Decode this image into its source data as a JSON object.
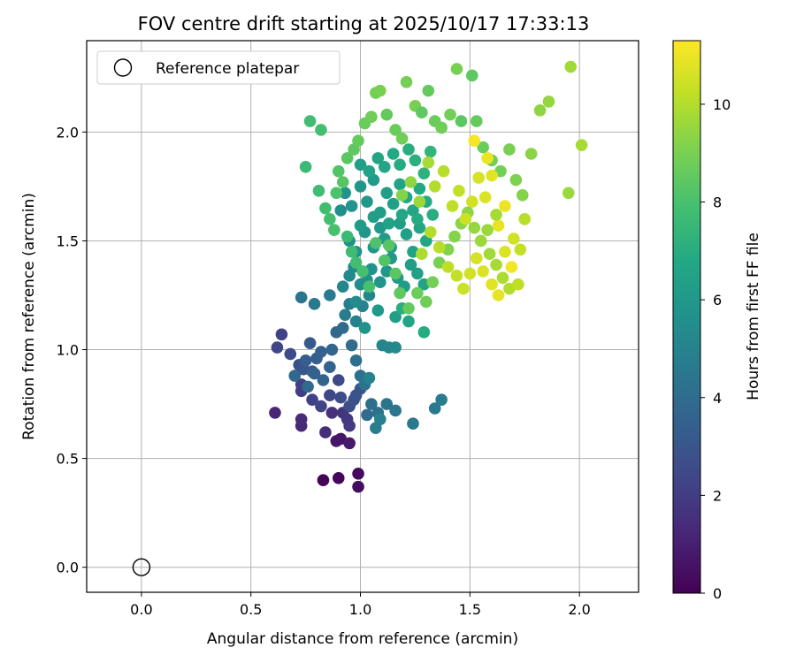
{
  "chart_data": {
    "type": "scatter",
    "title": "FOV centre drift starting at 2025/10/17 17:33:13",
    "xlabel": "Angular distance from reference (arcmin)",
    "ylabel": "Rotation from reference (arcmin)",
    "xlim": [
      -0.25,
      2.27
    ],
    "ylim": [
      -0.115,
      2.42
    ],
    "xticks": [
      0.0,
      0.5,
      1.0,
      1.5,
      2.0
    ],
    "xtick_labels": [
      "0.0",
      "0.5",
      "1.0",
      "1.5",
      "2.0"
    ],
    "yticks": [
      0.0,
      0.5,
      1.0,
      1.5,
      2.0
    ],
    "ytick_labels": [
      "0.0",
      "0.5",
      "1.0",
      "1.5",
      "2.0"
    ],
    "grid": true,
    "legend": {
      "position": "top-left",
      "entries": [
        {
          "marker": "open-circle",
          "label": "Reference platepar"
        }
      ]
    },
    "reference_point": {
      "x": 0.0,
      "y": 0.0
    },
    "colorbar": {
      "label": "Hours from first FF file",
      "range": [
        0,
        11.3
      ],
      "ticks": [
        0,
        2,
        4,
        6,
        8,
        10
      ],
      "tick_labels": [
        "0",
        "2",
        "4",
        "6",
        "8",
        "10"
      ],
      "colormap": "viridis"
    },
    "points": [
      [
        0.83,
        0.4,
        0.1
      ],
      [
        0.9,
        0.41,
        0.2
      ],
      [
        0.99,
        0.43,
        0.3
      ],
      [
        0.99,
        0.37,
        0.4
      ],
      [
        0.91,
        0.59,
        0.6
      ],
      [
        0.89,
        0.58,
        0.7
      ],
      [
        0.95,
        0.57,
        0.8
      ],
      [
        0.61,
        0.71,
        1.2
      ],
      [
        0.73,
        0.65,
        1.3
      ],
      [
        0.73,
        0.68,
        1.4
      ],
      [
        0.84,
        0.62,
        1.5
      ],
      [
        0.87,
        0.71,
        1.6
      ],
      [
        0.92,
        0.71,
        1.7
      ],
      [
        0.94,
        0.68,
        1.8
      ],
      [
        0.95,
        0.65,
        1.9
      ],
      [
        0.73,
        0.81,
        2.0
      ],
      [
        0.73,
        0.84,
        2.1
      ],
      [
        0.78,
        0.77,
        2.2
      ],
      [
        0.82,
        0.74,
        2.3
      ],
      [
        0.86,
        0.79,
        2.4
      ],
      [
        0.9,
        0.86,
        2.5
      ],
      [
        0.91,
        0.78,
        2.6
      ],
      [
        0.95,
        0.74,
        2.7
      ],
      [
        0.97,
        0.77,
        2.8
      ],
      [
        0.98,
        0.79,
        2.9
      ],
      [
        1.0,
        0.82,
        3.0
      ],
      [
        0.64,
        1.07,
        2.2
      ],
      [
        0.62,
        1.01,
        2.4
      ],
      [
        0.68,
        0.98,
        2.6
      ],
      [
        0.72,
        0.93,
        2.8
      ],
      [
        0.74,
        0.91,
        3.0
      ],
      [
        0.78,
        0.9,
        3.2
      ],
      [
        0.8,
        0.96,
        3.4
      ],
      [
        0.82,
        0.99,
        3.5
      ],
      [
        0.86,
        0.92,
        3.6
      ],
      [
        0.87,
        1.0,
        3.7
      ],
      [
        0.89,
        1.08,
        3.8
      ],
      [
        0.92,
        1.1,
        3.9
      ],
      [
        0.96,
        1.02,
        4.0
      ],
      [
        0.98,
        0.95,
        4.1
      ],
      [
        1.0,
        0.88,
        4.2
      ],
      [
        1.02,
        0.84,
        4.3
      ],
      [
        0.77,
        1.03,
        3.2
      ],
      [
        0.75,
        0.95,
        3.3
      ],
      [
        0.79,
        0.89,
        3.5
      ],
      [
        0.83,
        0.86,
        3.6
      ],
      [
        0.7,
        0.88,
        3.8
      ],
      [
        0.76,
        0.83,
        3.9
      ],
      [
        1.03,
        0.7,
        4.0
      ],
      [
        1.05,
        0.75,
        4.1
      ],
      [
        1.08,
        0.71,
        4.2
      ],
      [
        1.12,
        0.75,
        4.3
      ],
      [
        1.16,
        0.72,
        4.4
      ],
      [
        1.24,
        0.66,
        4.5
      ],
      [
        1.34,
        0.73,
        4.6
      ],
      [
        1.37,
        0.77,
        4.7
      ],
      [
        1.07,
        0.64,
        4.8
      ],
      [
        1.09,
        0.68,
        4.9
      ],
      [
        1.04,
        0.87,
        5.0
      ],
      [
        1.1,
        1.02,
        5.1
      ],
      [
        1.13,
        1.01,
        5.2
      ],
      [
        1.16,
        1.01,
        5.3
      ],
      [
        0.73,
        1.24,
        4.4
      ],
      [
        0.79,
        1.21,
        4.5
      ],
      [
        0.86,
        1.25,
        4.6
      ],
      [
        0.93,
        1.16,
        4.7
      ],
      [
        0.95,
        1.21,
        4.8
      ],
      [
        0.98,
        1.13,
        4.9
      ],
      [
        1.01,
        1.2,
        5.0
      ],
      [
        1.04,
        1.25,
        5.1
      ],
      [
        0.92,
        1.29,
        5.2
      ],
      [
        0.95,
        1.34,
        5.3
      ],
      [
        0.97,
        1.38,
        5.4
      ],
      [
        1.0,
        1.3,
        5.5
      ],
      [
        1.03,
        1.32,
        5.6
      ],
      [
        1.05,
        1.37,
        5.7
      ],
      [
        1.09,
        1.31,
        5.8
      ],
      [
        1.12,
        1.36,
        5.9
      ],
      [
        1.14,
        1.42,
        6.0
      ],
      [
        1.17,
        1.33,
        6.1
      ],
      [
        1.2,
        1.29,
        6.2
      ],
      [
        1.23,
        1.39,
        6.3
      ],
      [
        1.26,
        1.35,
        6.4
      ],
      [
        1.29,
        1.3,
        6.5
      ],
      [
        0.95,
        1.5,
        5.6
      ],
      [
        0.98,
        1.45,
        5.7
      ],
      [
        1.02,
        1.54,
        5.8
      ],
      [
        1.06,
        1.47,
        5.9
      ],
      [
        1.09,
        1.56,
        6.0
      ],
      [
        1.11,
        1.51,
        6.1
      ],
      [
        1.14,
        1.47,
        6.2
      ],
      [
        1.18,
        1.58,
        6.3
      ],
      [
        1.21,
        1.53,
        6.4
      ],
      [
        1.24,
        1.45,
        6.5
      ],
      [
        1.27,
        1.56,
        6.6
      ],
      [
        1.3,
        1.5,
        6.7
      ],
      [
        0.91,
        1.64,
        5.6
      ],
      [
        0.93,
        1.72,
        5.7
      ],
      [
        0.96,
        1.66,
        5.8
      ],
      [
        1.0,
        1.75,
        5.9
      ],
      [
        1.03,
        1.68,
        6.0
      ],
      [
        1.06,
        1.78,
        6.1
      ],
      [
        1.09,
        1.63,
        6.2
      ],
      [
        1.12,
        1.72,
        6.3
      ],
      [
        1.15,
        1.67,
        6.4
      ],
      [
        1.18,
        1.76,
        6.5
      ],
      [
        1.21,
        1.7,
        6.6
      ],
      [
        1.24,
        1.64,
        6.7
      ],
      [
        1.27,
        1.74,
        6.8
      ],
      [
        1.3,
        1.68,
        6.9
      ],
      [
        1.33,
        1.62,
        7.0
      ],
      [
        1.0,
        1.85,
        6.4
      ],
      [
        1.04,
        1.82,
        6.5
      ],
      [
        1.08,
        1.88,
        6.6
      ],
      [
        1.11,
        1.84,
        6.7
      ],
      [
        1.15,
        1.9,
        6.8
      ],
      [
        1.18,
        1.85,
        6.9
      ],
      [
        1.22,
        1.92,
        7.0
      ],
      [
        1.25,
        1.87,
        7.1
      ],
      [
        1.29,
        1.81,
        7.2
      ],
      [
        1.32,
        1.91,
        7.3
      ],
      [
        1.0,
        1.57,
        6.1
      ],
      [
        1.06,
        1.61,
        6.3
      ],
      [
        1.13,
        1.58,
        6.5
      ],
      [
        1.19,
        1.62,
        6.7
      ],
      [
        1.26,
        1.6,
        6.9
      ],
      [
        0.98,
        1.22,
        5.4
      ],
      [
        1.02,
        1.1,
        5.7
      ],
      [
        1.08,
        1.18,
        6.0
      ],
      [
        1.16,
        1.15,
        6.3
      ],
      [
        1.22,
        1.13,
        6.6
      ],
      [
        1.29,
        1.08,
        6.9
      ],
      [
        1.19,
        1.19,
        7.0
      ],
      [
        0.77,
        2.05,
        7.8
      ],
      [
        0.82,
        2.01,
        7.9
      ],
      [
        0.75,
        1.84,
        7.6
      ],
      [
        0.81,
        1.73,
        7.7
      ],
      [
        0.84,
        1.65,
        7.8
      ],
      [
        0.86,
        1.6,
        7.9
      ],
      [
        0.88,
        1.55,
        8.0
      ],
      [
        0.89,
        1.72,
        8.1
      ],
      [
        0.9,
        1.82,
        8.2
      ],
      [
        0.92,
        1.77,
        8.3
      ],
      [
        0.94,
        1.88,
        8.4
      ],
      [
        0.97,
        1.92,
        8.5
      ],
      [
        0.99,
        1.96,
        8.6
      ],
      [
        1.02,
        2.04,
        8.7
      ],
      [
        1.05,
        2.07,
        8.8
      ],
      [
        1.07,
        2.18,
        8.9
      ],
      [
        1.09,
        2.19,
        9.0
      ],
      [
        1.12,
        2.08,
        8.6
      ],
      [
        1.16,
        2.01,
        8.7
      ],
      [
        1.19,
        1.97,
        8.8
      ],
      [
        1.21,
        2.23,
        8.9
      ],
      [
        1.25,
        2.12,
        9.0
      ],
      [
        1.28,
        2.09,
        8.5
      ],
      [
        1.31,
        2.19,
        8.6
      ],
      [
        1.34,
        2.05,
        8.7
      ],
      [
        1.37,
        2.02,
        8.8
      ],
      [
        1.41,
        2.08,
        8.9
      ],
      [
        1.44,
        2.29,
        9.0
      ],
      [
        1.46,
        2.05,
        8.4
      ],
      [
        1.51,
        2.26,
        8.5
      ],
      [
        1.53,
        2.05,
        8.6
      ],
      [
        1.56,
        1.93,
        8.7
      ],
      [
        1.6,
        1.87,
        8.8
      ],
      [
        1.64,
        1.82,
        8.9
      ],
      [
        1.68,
        1.92,
        9.0
      ],
      [
        1.71,
        1.78,
        9.1
      ],
      [
        1.74,
        1.71,
        9.2
      ],
      [
        1.78,
        1.9,
        9.3
      ],
      [
        1.82,
        2.1,
        9.4
      ],
      [
        1.86,
        2.14,
        9.5
      ],
      [
        1.95,
        1.72,
        9.6
      ],
      [
        1.96,
        2.3,
        9.7
      ],
      [
        2.01,
        1.94,
        9.8
      ],
      [
        0.94,
        1.52,
        7.6
      ],
      [
        0.96,
        1.45,
        7.7
      ],
      [
        0.98,
        1.4,
        7.8
      ],
      [
        1.01,
        1.36,
        7.9
      ],
      [
        1.04,
        1.29,
        8.0
      ],
      [
        1.07,
        1.49,
        8.1
      ],
      [
        1.11,
        1.41,
        8.2
      ],
      [
        1.13,
        1.48,
        8.3
      ],
      [
        1.16,
        1.35,
        8.4
      ],
      [
        1.18,
        1.26,
        8.5
      ],
      [
        1.22,
        1.19,
        8.6
      ],
      [
        1.26,
        1.26,
        8.7
      ],
      [
        1.3,
        1.22,
        8.8
      ],
      [
        1.33,
        1.31,
        8.9
      ],
      [
        1.36,
        1.4,
        9.0
      ],
      [
        1.4,
        1.46,
        9.1
      ],
      [
        1.43,
        1.52,
        9.2
      ],
      [
        1.46,
        1.58,
        9.3
      ],
      [
        1.49,
        1.63,
        9.4
      ],
      [
        1.52,
        1.56,
        9.5
      ],
      [
        1.55,
        1.5,
        9.6
      ],
      [
        1.59,
        1.44,
        9.7
      ],
      [
        1.62,
        1.39,
        9.8
      ],
      [
        1.65,
        1.33,
        9.9
      ],
      [
        1.68,
        1.28,
        10.0
      ],
      [
        1.72,
        1.3,
        10.2
      ],
      [
        1.19,
        1.71,
        9.2
      ],
      [
        1.23,
        1.77,
        9.4
      ],
      [
        1.27,
        1.68,
        9.6
      ],
      [
        1.31,
        1.86,
        9.8
      ],
      [
        1.34,
        1.75,
        10.0
      ],
      [
        1.38,
        1.82,
        10.1
      ],
      [
        1.42,
        1.66,
        10.2
      ],
      [
        1.45,
        1.73,
        10.3
      ],
      [
        1.48,
        1.6,
        10.4
      ],
      [
        1.51,
        1.68,
        10.5
      ],
      [
        1.54,
        1.79,
        10.6
      ],
      [
        1.57,
        1.7,
        10.7
      ],
      [
        1.6,
        1.8,
        10.8
      ],
      [
        1.63,
        1.57,
        10.9
      ],
      [
        1.66,
        1.66,
        11.0
      ],
      [
        1.69,
        1.38,
        11.1
      ],
      [
        1.28,
        1.44,
        9.9
      ],
      [
        1.32,
        1.54,
        10.0
      ],
      [
        1.36,
        1.47,
        10.1
      ],
      [
        1.4,
        1.38,
        10.2
      ],
      [
        1.44,
        1.34,
        10.3
      ],
      [
        1.47,
        1.28,
        10.4
      ],
      [
        1.5,
        1.35,
        10.5
      ],
      [
        1.53,
        1.42,
        10.6
      ],
      [
        1.56,
        1.36,
        10.7
      ],
      [
        1.6,
        1.3,
        10.8
      ],
      [
        1.63,
        1.25,
        10.9
      ],
      [
        1.52,
        1.96,
        11.2
      ],
      [
        1.58,
        1.88,
        11.0
      ],
      [
        1.66,
        1.45,
        10.7
      ],
      [
        1.7,
        1.51,
        10.5
      ],
      [
        1.73,
        1.46,
        10.3
      ],
      [
        1.75,
        1.6,
        10.1
      ],
      [
        1.62,
        1.62,
        9.8
      ],
      [
        1.58,
        1.55,
        9.6
      ]
    ]
  }
}
